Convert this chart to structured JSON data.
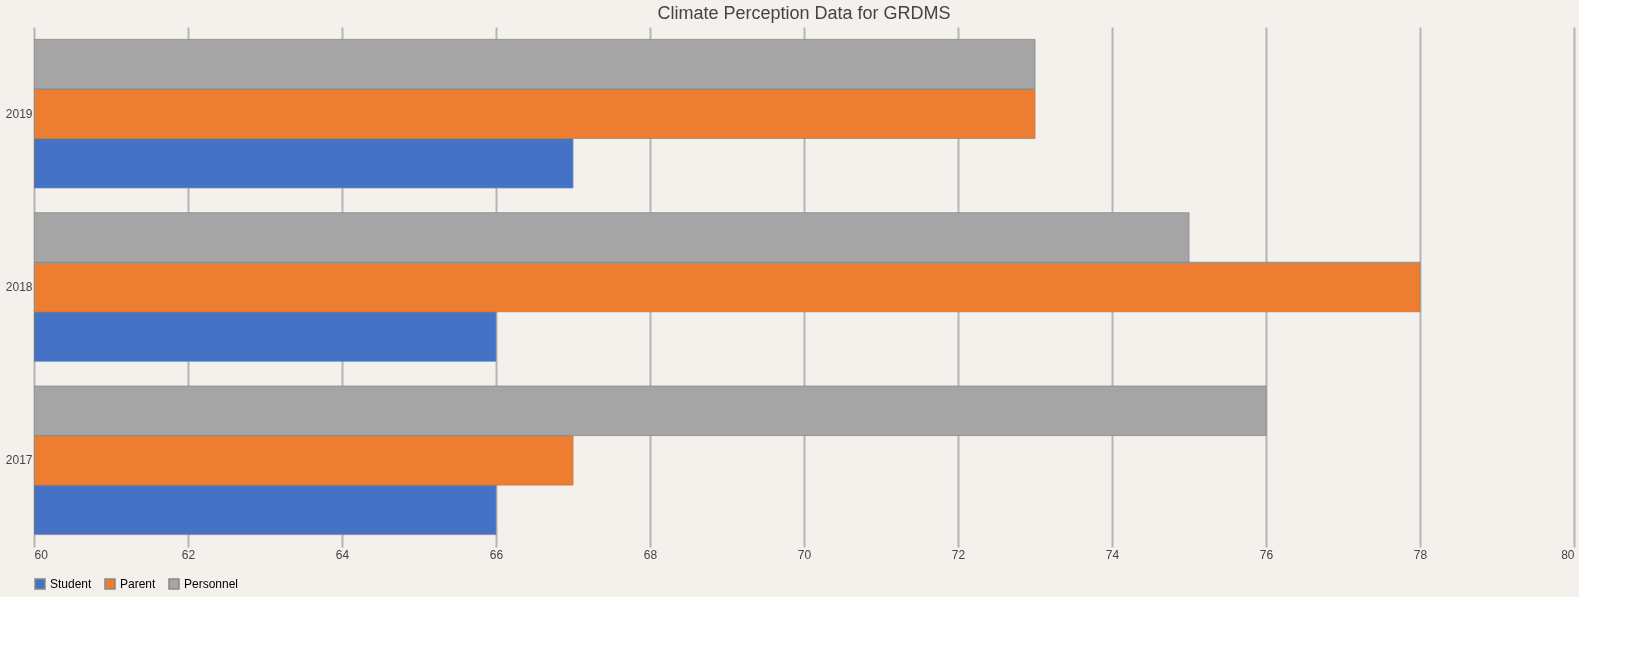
{
  "chart_data": {
    "type": "bar",
    "orientation": "horizontal",
    "title": "Climate Perception Data for GRDMS",
    "categories": [
      "2019",
      "2018",
      "2017"
    ],
    "series": [
      {
        "name": "Student",
        "color": "#4472c4",
        "values": [
          67,
          66,
          66
        ]
      },
      {
        "name": "Parent",
        "color": "#ed7d31",
        "values": [
          73,
          78,
          67
        ]
      },
      {
        "name": "Personnel",
        "color": "#a5a5a5",
        "values": [
          73,
          75,
          76
        ]
      }
    ],
    "xlim": [
      60,
      80
    ],
    "xticks": [
      60,
      62,
      64,
      66,
      68,
      70,
      72,
      74,
      76,
      78,
      80
    ],
    "grid": "x",
    "legend": "bottom"
  }
}
